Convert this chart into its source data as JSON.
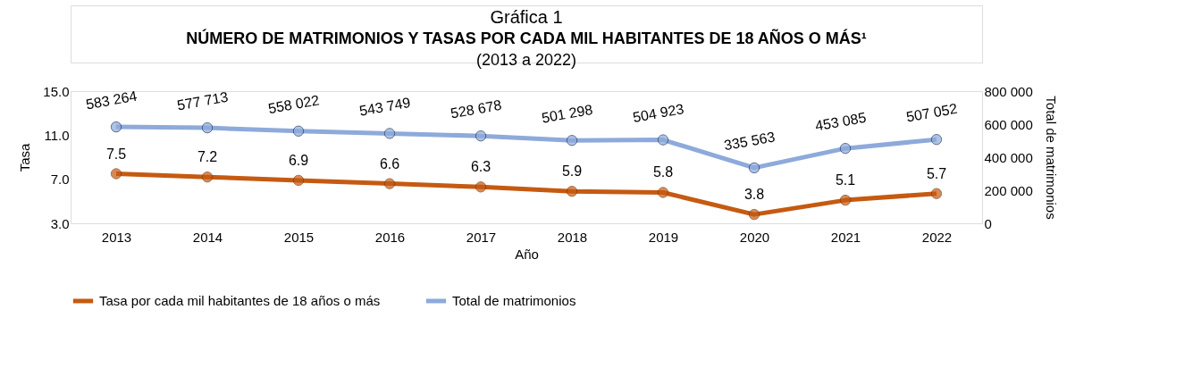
{
  "chart_data": {
    "type": "line",
    "title": "Gráfica 1",
    "subtitle": "NÚMERO DE MATRIMONIOS Y TASAS POR CADA MIL HABITANTES DE 18 AÑOS O MÁS¹",
    "annotations": [
      "(2013 a 2022)"
    ],
    "xlabel": "Año",
    "ylabel": "Tasa",
    "y2label": "Total de matrimonios",
    "categories": [
      "2013",
      "2014",
      "2015",
      "2016",
      "2017",
      "2018",
      "2019",
      "2020",
      "2021",
      "2022"
    ],
    "series": [
      {
        "name": "Tasa por cada mil habitantes de 18 años o más",
        "color": "#c55a11",
        "values": [
          7.5,
          7.2,
          6.9,
          6.6,
          6.3,
          5.9,
          5.8,
          3.8,
          5.1,
          5.7
        ],
        "value_labels": [
          "7.5",
          "7.2",
          "6.9",
          "6.6",
          "6.3",
          "5.9",
          "5.8",
          "3.8",
          "5.1",
          "5.7"
        ]
      },
      {
        "name": "Total de matrimonios",
        "color": "#8eaadb",
        "axis": "y2",
        "values": [
          583264,
          577713,
          558022,
          543749,
          528678,
          501298,
          504923,
          335563,
          453085,
          507052
        ],
        "value_labels": [
          "583 264",
          "577 713",
          "558 022",
          "543 749",
          "528 678",
          "501 298",
          "504 923",
          "335 563",
          "453 085",
          "507 052"
        ]
      }
    ],
    "ylim": [
      3,
      15
    ],
    "yticks": [
      {
        "value": 3,
        "label": "3.0"
      },
      {
        "value": 7,
        "label": "7.0"
      },
      {
        "value": 11,
        "label": "11.0"
      },
      {
        "value": 15,
        "label": "15.0"
      }
    ],
    "y2lim": [
      0,
      800000
    ],
    "y2ticks": [
      0,
      {
        "value": 200000,
        "label": "200 000"
      },
      {
        "value": 400000,
        "label": "400 000"
      },
      {
        "value": 600000,
        "label": "600 000"
      },
      {
        "value": 800000,
        "label": "800 000"
      }
    ],
    "grid": false,
    "legend": "bottom",
    "marker": "circle",
    "line_style": "solid"
  }
}
